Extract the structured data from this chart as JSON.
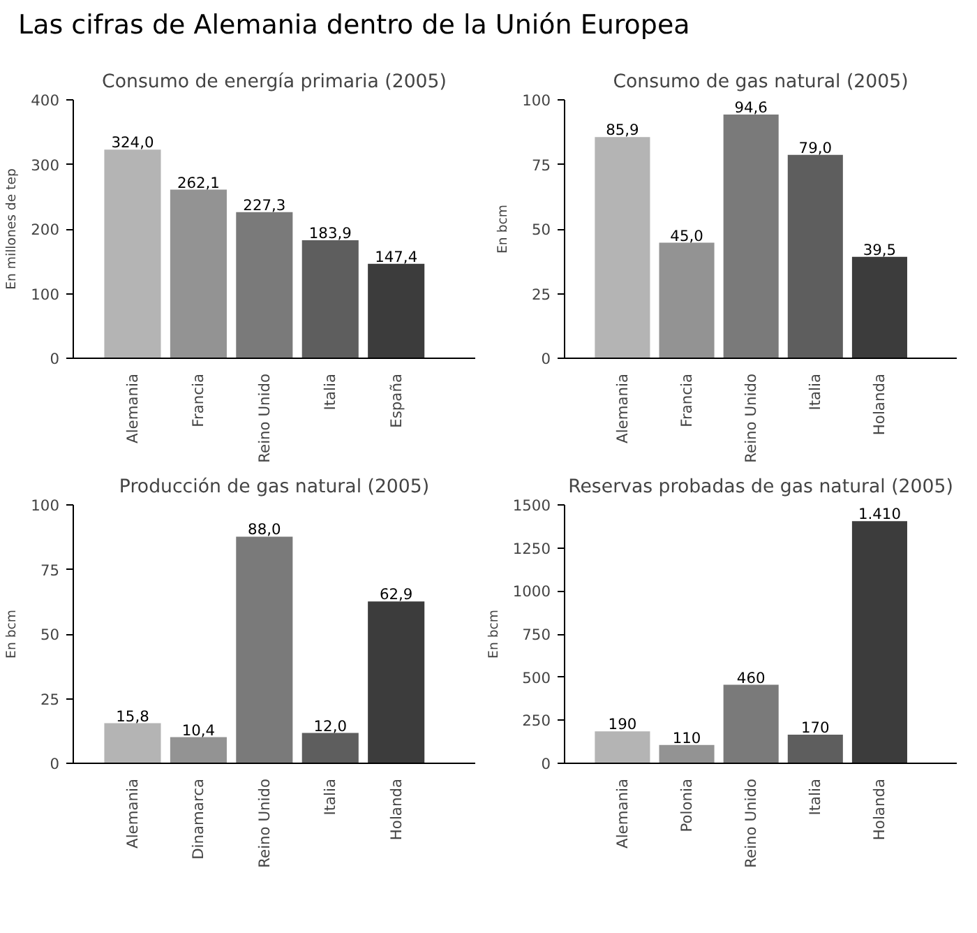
{
  "chart_data": [
    {
      "type": "bar",
      "title": "Consumo de energía primaria (2005)",
      "ylabel": "En millones de tep",
      "annotations": [
        "Las cifras de Alemania dentro de la Unión Europea"
      ],
      "categories": [
        "Alemania",
        "Francia",
        "Reino Unido",
        "Italia",
        "España"
      ],
      "values": [
        324.0,
        262.1,
        227.3,
        183.9,
        147.4
      ],
      "value_labels": [
        "324,0",
        "262,1",
        "227,3",
        "183,9",
        "147,4"
      ],
      "colors": [
        "#b4b4b4",
        "#939393",
        "#7a7a7a",
        "#5e5e5e",
        "#3c3c3c"
      ],
      "ylim": [
        0,
        400
      ],
      "yticks": [
        0,
        100,
        200,
        300,
        400
      ],
      "grid": false
    },
    {
      "type": "bar",
      "title": "Consumo de gas natural (2005)",
      "ylabel": "En bcm",
      "categories": [
        "Alemania",
        "Francia",
        "Reino Unido",
        "Italia",
        "Holanda"
      ],
      "values": [
        85.9,
        45.0,
        94.6,
        79.0,
        39.5
      ],
      "value_labels": [
        "85,9",
        "45,0",
        "94,6",
        "79,0",
        "39,5"
      ],
      "colors": [
        "#b4b4b4",
        "#939393",
        "#7a7a7a",
        "#5e5e5e",
        "#3c3c3c"
      ],
      "ylim": [
        0,
        100
      ],
      "yticks": [
        0,
        25,
        50,
        75,
        100
      ],
      "grid": false
    },
    {
      "type": "bar",
      "title": "Producción de gas natural (2005)",
      "ylabel": "En bcm",
      "categories": [
        "Alemania",
        "Dinamarca",
        "Reino Unido",
        "Italia",
        "Holanda"
      ],
      "values": [
        15.8,
        10.4,
        88.0,
        12.0,
        62.9
      ],
      "value_labels": [
        "15,8",
        "10,4",
        "88,0",
        "12,0",
        "62,9"
      ],
      "colors": [
        "#b4b4b4",
        "#939393",
        "#7a7a7a",
        "#5e5e5e",
        "#3c3c3c"
      ],
      "ylim": [
        0,
        100
      ],
      "yticks": [
        0,
        25,
        50,
        75,
        100
      ],
      "grid": false
    },
    {
      "type": "bar",
      "title": "Reservas probadas de gas natural (2005)",
      "ylabel": "En bcm",
      "categories": [
        "Alemania",
        "Polonia",
        "Reino Unido",
        "Italia",
        "Holanda"
      ],
      "values": [
        190,
        110,
        460,
        170,
        1410
      ],
      "value_labels": [
        "190",
        "110",
        "460",
        "170",
        "1.410"
      ],
      "colors": [
        "#b4b4b4",
        "#939393",
        "#7a7a7a",
        "#5e5e5e",
        "#3c3c3c"
      ],
      "ylim": [
        0,
        1500
      ],
      "yticks": [
        0,
        250,
        500,
        750,
        1000,
        1250,
        1500
      ],
      "grid": false
    }
  ]
}
